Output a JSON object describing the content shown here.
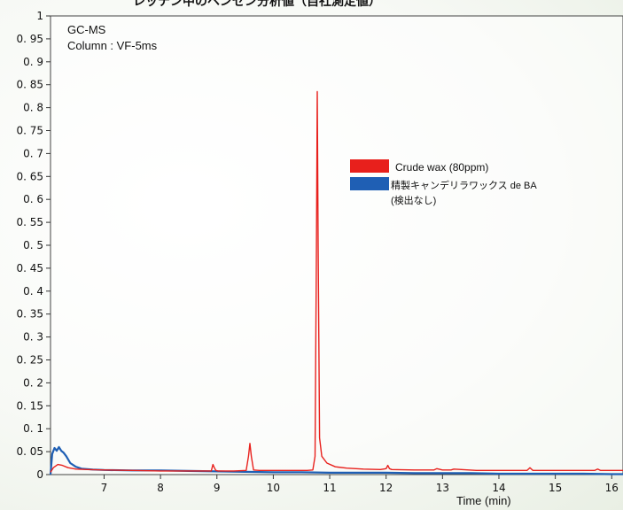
{
  "chart_data": {
    "type": "line",
    "title": "レッテン中のベンゼン分析値（自社測定値）",
    "annotations": [
      "GC-MS",
      "Column : VF-5ms"
    ],
    "xlabel": "Time (min)",
    "ylabel": "",
    "xlim": [
      6.05,
      16.2
    ],
    "ylim": [
      0,
      1
    ],
    "x_ticks": [
      7,
      8,
      9,
      10,
      11,
      12,
      13,
      14,
      15,
      16
    ],
    "y_ticks": [
      "0",
      "0. 05",
      "0. 1",
      "0. 15",
      "0. 2",
      "0. 25",
      "0. 3",
      "0. 35",
      "0. 4",
      "0. 45",
      "0. 5",
      "0. 55",
      "0. 6",
      "0. 65",
      "0. 7",
      "0. 75",
      "0. 8",
      "0. 85",
      "0. 9",
      "0. 95",
      "1"
    ],
    "y_tick_values": [
      0,
      0.05,
      0.1,
      0.15,
      0.2,
      0.25,
      0.3,
      0.35,
      0.4,
      0.45,
      0.5,
      0.55,
      0.6,
      0.65,
      0.7,
      0.75,
      0.8,
      0.85,
      0.9,
      0.95,
      1
    ],
    "legend_position": "top-right",
    "grid": false,
    "series": [
      {
        "name": "Crude wax (80ppm)",
        "color": "#e8201c",
        "x": [
          6.05,
          6.1,
          6.18,
          6.26,
          6.36,
          6.5,
          6.7,
          7.0,
          7.5,
          8.0,
          8.5,
          8.9,
          8.93,
          8.95,
          8.98,
          9.02,
          9.3,
          9.52,
          9.56,
          9.585,
          9.61,
          9.65,
          9.75,
          10.0,
          10.3,
          10.6,
          10.7,
          10.74,
          10.765,
          10.78,
          10.795,
          10.82,
          10.86,
          10.95,
          11.1,
          11.3,
          11.6,
          11.9,
          12.0,
          12.03,
          12.06,
          12.1,
          12.5,
          12.85,
          12.9,
          13.0,
          13.15,
          13.2,
          13.6,
          14.0,
          14.5,
          14.55,
          14.6,
          15.0,
          15.5,
          15.7,
          15.75,
          15.8,
          16.2
        ],
        "y": [
          0.005,
          0.015,
          0.022,
          0.02,
          0.015,
          0.012,
          0.011,
          0.01,
          0.009,
          0.008,
          0.008,
          0.008,
          0.022,
          0.016,
          0.009,
          0.008,
          0.008,
          0.009,
          0.04,
          0.068,
          0.04,
          0.01,
          0.009,
          0.009,
          0.009,
          0.009,
          0.01,
          0.04,
          0.5,
          0.835,
          0.5,
          0.08,
          0.04,
          0.025,
          0.017,
          0.014,
          0.012,
          0.011,
          0.013,
          0.02,
          0.013,
          0.011,
          0.01,
          0.01,
          0.013,
          0.01,
          0.01,
          0.012,
          0.009,
          0.009,
          0.009,
          0.015,
          0.009,
          0.009,
          0.009,
          0.009,
          0.012,
          0.009,
          0.009
        ]
      },
      {
        "name": "精製キャンデリラワックス de BA",
        "name_note": "(検出なし)",
        "color": "#1f5fb4",
        "x": [
          6.05,
          6.08,
          6.12,
          6.16,
          6.2,
          6.24,
          6.28,
          6.33,
          6.4,
          6.5,
          6.6,
          6.8,
          7.0,
          7.5,
          8.0,
          8.5,
          9.0,
          9.5,
          10.0,
          10.5,
          11.0,
          11.5,
          12.0,
          12.5,
          13.0,
          13.5,
          14.0,
          14.5,
          15.0,
          15.5,
          16.0,
          16.2
        ],
        "y": [
          0.0,
          0.045,
          0.058,
          0.052,
          0.06,
          0.052,
          0.048,
          0.04,
          0.025,
          0.017,
          0.013,
          0.011,
          0.01,
          0.009,
          0.009,
          0.008,
          0.007,
          0.006,
          0.005,
          0.005,
          0.004,
          0.004,
          0.004,
          0.003,
          0.003,
          0.003,
          0.002,
          0.002,
          0.002,
          0.002,
          0.001,
          0.001
        ]
      }
    ]
  }
}
